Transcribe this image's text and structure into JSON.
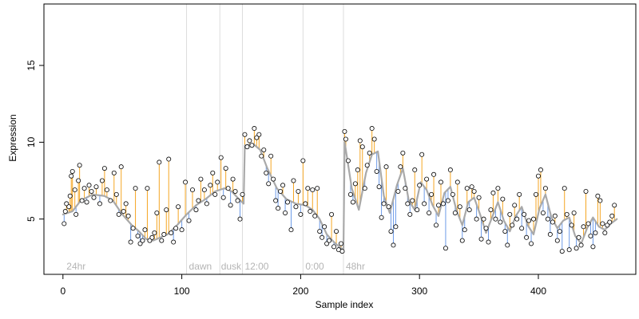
{
  "chart_data": {
    "type": "scatter",
    "title": "",
    "xlabel": "Sample index",
    "ylabel": "Expression",
    "xlim": [
      -16,
      482
    ],
    "ylim": [
      1.4,
      19.0
    ],
    "x_ticks": [
      0,
      100,
      200,
      300,
      400
    ],
    "y_ticks": [
      5,
      10,
      15
    ],
    "grid": false,
    "legend": "none",
    "colors": {
      "points_fill": "#ffffff",
      "points_stroke": "#000000",
      "above_fit": "#f5a623",
      "below_fit": "#6d9be8",
      "fit_line": "#a9a9a9",
      "markers": "#dddddd",
      "annotations": "#b4b4b4"
    },
    "annotations": [
      {
        "x": 3,
        "marker_x": null,
        "label": "24hr"
      },
      {
        "x": 106,
        "marker_x": 104,
        "label": "dawn"
      },
      {
        "x": 133,
        "marker_x": 132,
        "label": "dusk"
      },
      {
        "x": 153,
        "marker_x": 151,
        "label": "12:00"
      },
      {
        "x": 204,
        "marker_x": 202,
        "label": "0:00"
      },
      {
        "x": 238,
        "marker_x": 236,
        "label": "48hr"
      }
    ],
    "fit_knots": [
      [
        0,
        5.3
      ],
      [
        8,
        5.5
      ],
      [
        15,
        6.2
      ],
      [
        25,
        6.6
      ],
      [
        35,
        6.5
      ],
      [
        42,
        6.2
      ],
      [
        50,
        5.3
      ],
      [
        58,
        4.6
      ],
      [
        64,
        4.2
      ],
      [
        70,
        3.7
      ],
      [
        76,
        3.6
      ],
      [
        82,
        3.8
      ],
      [
        88,
        4.0
      ],
      [
        96,
        4.6
      ],
      [
        104,
        5.3
      ],
      [
        112,
        5.9
      ],
      [
        120,
        6.3
      ],
      [
        128,
        6.8
      ],
      [
        136,
        7.0
      ],
      [
        142,
        6.8
      ],
      [
        148,
        6.3
      ],
      [
        152,
        6.0
      ],
      [
        153,
        9.8
      ],
      [
        160,
        9.9
      ],
      [
        166,
        9.5
      ],
      [
        172,
        8.3
      ],
      [
        180,
        7.0
      ],
      [
        188,
        6.3
      ],
      [
        196,
        6.0
      ],
      [
        204,
        5.9
      ],
      [
        210,
        5.6
      ],
      [
        216,
        5.0
      ],
      [
        222,
        4.0
      ],
      [
        228,
        3.5
      ],
      [
        234,
        3.1
      ],
      [
        236,
        3.0
      ],
      [
        237,
        10.0
      ],
      [
        243,
        7.0
      ],
      [
        249,
        5.6
      ],
      [
        255,
        8.0
      ],
      [
        260,
        9.2
      ],
      [
        265,
        9.4
      ],
      [
        270,
        6.5
      ],
      [
        275,
        5.4
      ],
      [
        281,
        7.2
      ],
      [
        286,
        8.3
      ],
      [
        291,
        6.2
      ],
      [
        296,
        5.6
      ],
      [
        301,
        7.4
      ],
      [
        306,
        6.9
      ],
      [
        311,
        5.9
      ],
      [
        316,
        5.2
      ],
      [
        321,
        6.7
      ],
      [
        326,
        7.1
      ],
      [
        331,
        5.6
      ],
      [
        336,
        4.6
      ],
      [
        341,
        6.1
      ],
      [
        346,
        6.4
      ],
      [
        351,
        5.3
      ],
      [
        356,
        4.1
      ],
      [
        361,
        5.1
      ],
      [
        366,
        6.1
      ],
      [
        371,
        4.9
      ],
      [
        376,
        4.2
      ],
      [
        381,
        5.2
      ],
      [
        386,
        5.8
      ],
      [
        391,
        4.6
      ],
      [
        396,
        4.0
      ],
      [
        401,
        5.7
      ],
      [
        406,
        6.6
      ],
      [
        411,
        5.1
      ],
      [
        416,
        4.4
      ],
      [
        421,
        4.9
      ],
      [
        426,
        5.1
      ],
      [
        431,
        3.9
      ],
      [
        436,
        3.4
      ],
      [
        441,
        4.4
      ],
      [
        446,
        5.1
      ],
      [
        451,
        4.5
      ],
      [
        456,
        4.3
      ],
      [
        461,
        4.7
      ],
      [
        466,
        5.0
      ]
    ],
    "residual_pattern": [
      0.9,
      -0.6,
      1.4,
      -1.1,
      0.4,
      2.2,
      -0.3,
      -1.5,
      0.7,
      1.1,
      -0.8,
      0.2,
      2.6,
      -0.4,
      -1.9,
      0.5,
      1.6,
      -0.9,
      0.1,
      -1.2,
      3.3,
      -0.5,
      0.8,
      -1.6,
      1.9,
      0.3,
      -0.7,
      1.2,
      -2.1,
      0.6,
      -0.2,
      2.8,
      -1.0,
      0.4,
      1.5,
      -1.4,
      0.9,
      -0.3,
      2.1,
      -1.7,
      0.2,
      1.0,
      -0.6,
      -2.3,
      1.3,
      0.5,
      -1.1,
      3.0,
      -0.4,
      0.7,
      -1.3,
      1.8,
      0.1,
      -0.8,
      1.1,
      -2.0,
      0.6,
      2.4,
      -0.5,
      -1.0
    ],
    "points": [
      [
        1,
        4.7
      ],
      [
        2,
        5.5
      ],
      [
        3,
        6.0
      ],
      [
        5,
        5.8
      ],
      [
        6,
        6.5
      ],
      [
        7,
        7.8
      ],
      [
        8,
        8.1
      ],
      [
        10,
        6.9
      ],
      [
        11,
        5.3
      ],
      [
        13,
        7.5
      ],
      [
        14,
        8.5
      ],
      [
        16,
        6.2
      ],
      [
        18,
        7.0
      ],
      [
        20,
        6.1
      ],
      [
        22,
        7.2
      ],
      [
        24,
        6.8
      ],
      [
        26,
        6.4
      ],
      [
        28,
        7.1
      ],
      [
        31,
        6.0
      ],
      [
        33,
        7.5
      ],
      [
        35,
        8.3
      ],
      [
        37,
        6.9
      ],
      [
        40,
        6.2
      ],
      [
        43,
        8.0
      ],
      [
        45,
        6.6
      ],
      [
        47,
        5.3
      ],
      [
        49,
        8.4
      ],
      [
        51,
        5.5
      ],
      [
        53,
        6.0
      ],
      [
        55,
        5.2
      ],
      [
        57,
        3.5
      ],
      [
        59,
        4.4
      ],
      [
        61,
        7.0
      ],
      [
        63,
        3.9
      ],
      [
        65,
        3.4
      ],
      [
        67,
        3.6
      ],
      [
        69,
        4.3
      ],
      [
        71,
        7.0
      ],
      [
        73,
        3.6
      ],
      [
        75,
        3.8
      ],
      [
        77,
        4.1
      ],
      [
        79,
        5.4
      ],
      [
        81,
        8.7
      ],
      [
        83,
        3.6
      ],
      [
        85,
        4.0
      ],
      [
        87,
        5.6
      ],
      [
        89,
        8.9
      ],
      [
        91,
        4.1
      ],
      [
        93,
        3.5
      ],
      [
        95,
        4.4
      ],
      [
        97,
        5.8
      ],
      [
        100,
        4.3
      ],
      [
        103,
        7.4
      ],
      [
        106,
        4.9
      ],
      [
        109,
        6.9
      ],
      [
        112,
        5.6
      ],
      [
        114,
        6.2
      ],
      [
        116,
        7.6
      ],
      [
        119,
        6.9
      ],
      [
        121,
        6.0
      ],
      [
        124,
        7.2
      ],
      [
        126,
        8.0
      ],
      [
        128,
        6.6
      ],
      [
        130,
        7.4
      ],
      [
        133,
        9.0
      ],
      [
        135,
        6.4
      ],
      [
        137,
        8.3
      ],
      [
        139,
        7.0
      ],
      [
        141,
        5.9
      ],
      [
        143,
        7.6
      ],
      [
        145,
        6.8
      ],
      [
        147,
        6.2
      ],
      [
        149,
        5.0
      ],
      [
        151,
        6.6
      ],
      [
        153,
        10.5
      ],
      [
        155,
        9.7
      ],
      [
        157,
        10.1
      ],
      [
        159,
        9.8
      ],
      [
        161,
        10.9
      ],
      [
        163,
        10.3
      ],
      [
        165,
        10.5
      ],
      [
        167,
        9.1
      ],
      [
        169,
        9.5
      ],
      [
        171,
        8.0
      ],
      [
        173,
        7.3
      ],
      [
        175,
        9.1
      ],
      [
        177,
        7.6
      ],
      [
        179,
        6.2
      ],
      [
        181,
        5.7
      ],
      [
        183,
        6.8
      ],
      [
        185,
        7.2
      ],
      [
        187,
        5.4
      ],
      [
        189,
        6.1
      ],
      [
        192,
        4.3
      ],
      [
        194,
        7.5
      ],
      [
        196,
        5.8
      ],
      [
        198,
        6.8
      ],
      [
        200,
        5.3
      ],
      [
        202,
        8.8
      ],
      [
        204,
        6.0
      ],
      [
        206,
        7.0
      ],
      [
        208,
        5.5
      ],
      [
        210,
        6.9
      ],
      [
        212,
        5.2
      ],
      [
        214,
        7.0
      ],
      [
        216,
        4.2
      ],
      [
        218,
        3.8
      ],
      [
        220,
        4.5
      ],
      [
        222,
        3.4
      ],
      [
        224,
        3.6
      ],
      [
        226,
        5.3
      ],
      [
        228,
        3.2
      ],
      [
        230,
        4.2
      ],
      [
        232,
        3.0
      ],
      [
        234,
        3.4
      ],
      [
        235,
        2.9
      ],
      [
        237,
        10.7
      ],
      [
        238,
        10.2
      ],
      [
        240,
        8.8
      ],
      [
        242,
        6.6
      ],
      [
        244,
        6.1
      ],
      [
        246,
        7.3
      ],
      [
        248,
        8.2
      ],
      [
        250,
        10.1
      ],
      [
        252,
        9.7
      ],
      [
        254,
        7.0
      ],
      [
        256,
        8.5
      ],
      [
        258,
        9.3
      ],
      [
        260,
        10.9
      ],
      [
        262,
        10.2
      ],
      [
        264,
        8.1
      ],
      [
        266,
        7.1
      ],
      [
        268,
        5.1
      ],
      [
        270,
        6.0
      ],
      [
        272,
        8.4
      ],
      [
        274,
        5.8
      ],
      [
        276,
        4.2
      ],
      [
        278,
        3.3
      ],
      [
        280,
        4.5
      ],
      [
        282,
        6.8
      ],
      [
        284,
        8.4
      ],
      [
        286,
        9.3
      ],
      [
        288,
        7.0
      ],
      [
        290,
        6.0
      ],
      [
        292,
        5.3
      ],
      [
        294,
        6.2
      ],
      [
        296,
        8.2
      ],
      [
        298,
        5.6
      ],
      [
        300,
        7.2
      ],
      [
        302,
        9.2
      ],
      [
        304,
        6.0
      ],
      [
        306,
        7.6
      ],
      [
        308,
        5.4
      ],
      [
        310,
        6.6
      ],
      [
        312,
        7.9
      ],
      [
        314,
        4.6
      ],
      [
        316,
        5.9
      ],
      [
        318,
        7.4
      ],
      [
        320,
        6.0
      ],
      [
        322,
        3.1
      ],
      [
        324,
        6.2
      ],
      [
        326,
        8.2
      ],
      [
        328,
        6.6
      ],
      [
        330,
        5.4
      ],
      [
        332,
        7.4
      ],
      [
        334,
        5.8
      ],
      [
        336,
        3.6
      ],
      [
        338,
        4.3
      ],
      [
        340,
        7.0
      ],
      [
        342,
        5.6
      ],
      [
        344,
        7.1
      ],
      [
        346,
        6.8
      ],
      [
        348,
        5.0
      ],
      [
        350,
        6.4
      ],
      [
        352,
        3.7
      ],
      [
        354,
        5.0
      ],
      [
        356,
        4.4
      ],
      [
        358,
        3.5
      ],
      [
        360,
        5.6
      ],
      [
        362,
        6.7
      ],
      [
        364,
        5.0
      ],
      [
        366,
        7.0
      ],
      [
        368,
        4.8
      ],
      [
        370,
        6.3
      ],
      [
        372,
        4.2
      ],
      [
        374,
        3.3
      ],
      [
        376,
        5.3
      ],
      [
        378,
        4.6
      ],
      [
        380,
        5.9
      ],
      [
        382,
        5.0
      ],
      [
        384,
        6.6
      ],
      [
        386,
        4.4
      ],
      [
        388,
        5.3
      ],
      [
        390,
        3.8
      ],
      [
        392,
        4.9
      ],
      [
        394,
        3.4
      ],
      [
        396,
        5.0
      ],
      [
        398,
        6.6
      ],
      [
        400,
        7.8
      ],
      [
        402,
        8.2
      ],
      [
        404,
        5.4
      ],
      [
        406,
        7.0
      ],
      [
        408,
        5.0
      ],
      [
        410,
        4.0
      ],
      [
        412,
        4.8
      ],
      [
        414,
        5.2
      ],
      [
        416,
        3.6
      ],
      [
        418,
        4.2
      ],
      [
        420,
        2.9
      ],
      [
        422,
        7.0
      ],
      [
        424,
        5.3
      ],
      [
        426,
        3.0
      ],
      [
        428,
        4.6
      ],
      [
        430,
        5.4
      ],
      [
        432,
        3.1
      ],
      [
        434,
        3.8
      ],
      [
        436,
        3.3
      ],
      [
        438,
        4.5
      ],
      [
        440,
        6.8
      ],
      [
        442,
        4.7
      ],
      [
        444,
        3.9
      ],
      [
        446,
        3.2
      ],
      [
        448,
        4.1
      ],
      [
        450,
        6.5
      ],
      [
        452,
        6.2
      ],
      [
        454,
        4.7
      ],
      [
        456,
        4.1
      ],
      [
        458,
        4.6
      ],
      [
        460,
        4.8
      ],
      [
        462,
        5.2
      ],
      [
        464,
        5.9
      ]
    ]
  }
}
